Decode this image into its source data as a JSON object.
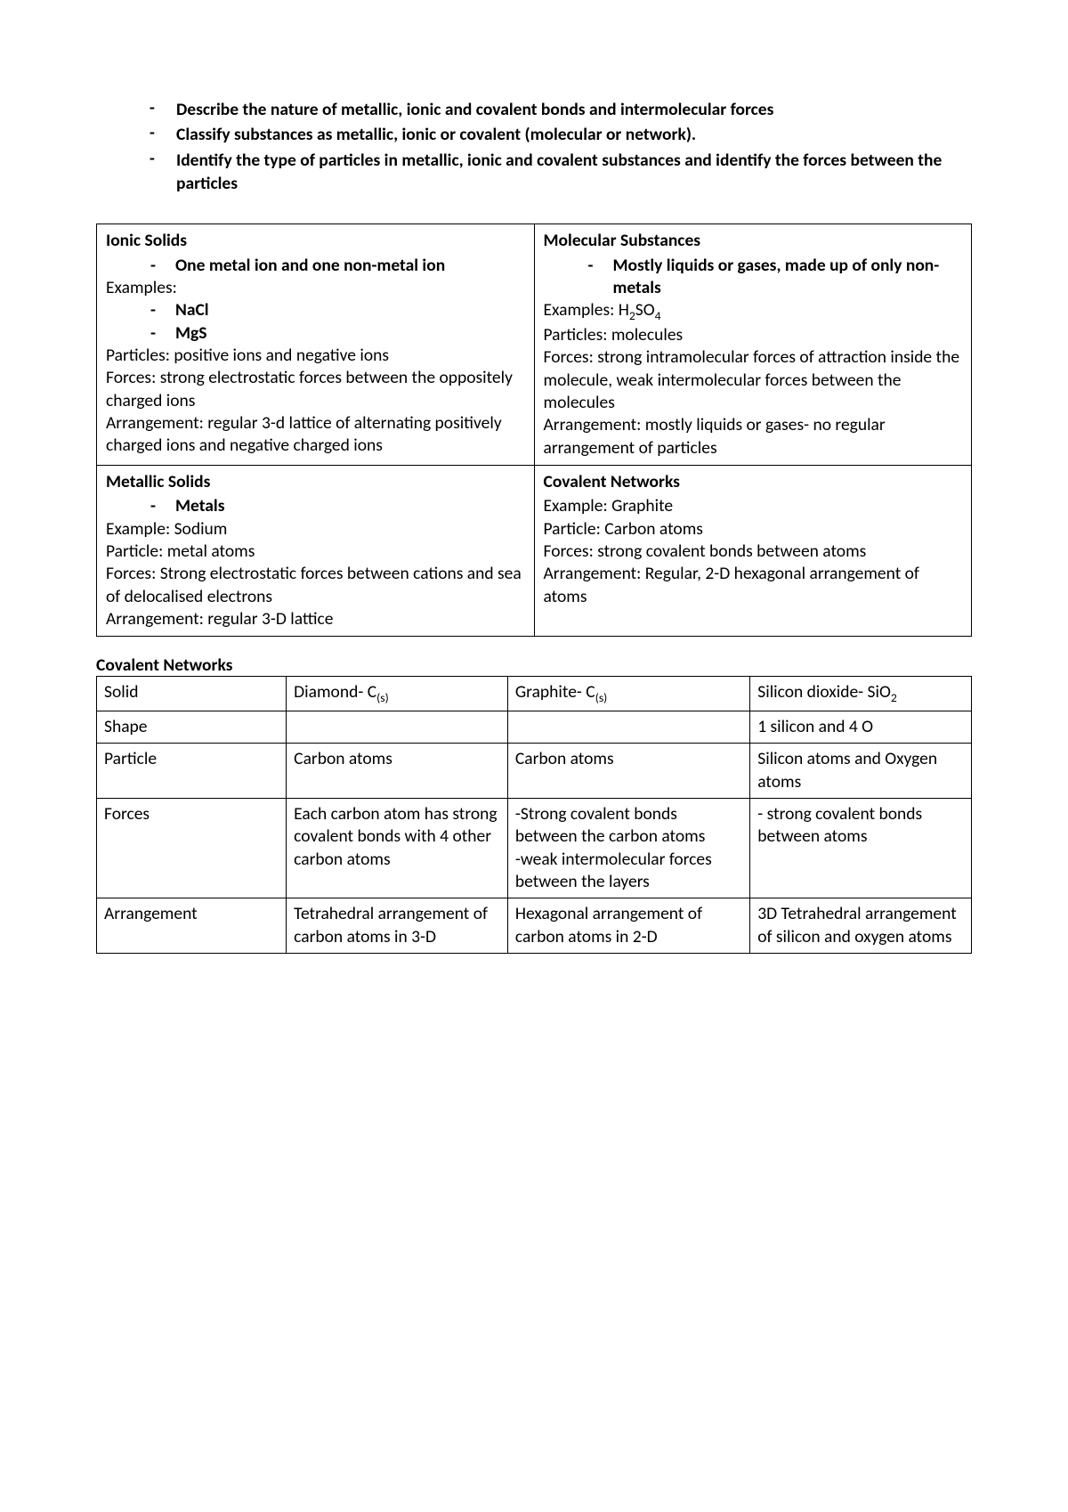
{
  "colors": {
    "text": "#000000",
    "background": "#ffffff",
    "border": "#000000"
  },
  "typography": {
    "font_family": "Calibri, Segoe UI, Arial, sans-serif",
    "body_fontsize_pt": 15,
    "bold_weight": 700
  },
  "top_bullets": [
    "Describe the nature of metallic, ionic and covalent bonds and intermolecular forces",
    "Classify substances as metallic, ionic or covalent (molecular or network).",
    "Identify the type of particles in metallic, ionic and covalent substances and identify the forces between the particles"
  ],
  "grid": {
    "ionic": {
      "title": "Ionic Solids",
      "sub_bullets": [
        "One metal ion and one non-metal ion"
      ],
      "examples_label": "Examples:",
      "examples": [
        "NaCl",
        "MgS"
      ],
      "particles": "Particles: positive ions and negative ions",
      "forces": "Forces:  strong electrostatic forces between the oppositely charged ions",
      "arrangement": "Arrangement: regular 3-d lattice of alternating positively charged ions and negative charged ions"
    },
    "molecular": {
      "title": "Molecular Substances",
      "sub_bullets": [
        "Mostly liquids or gases, made up of only non-metals"
      ],
      "examples_html": "Examples: H<sub>2</sub>SO<sub>4</sub>",
      "particles": "Particles: molecules",
      "forces": "Forces: strong intramolecular forces of attraction inside the molecule, weak intermolecular forces between the molecules",
      "arrangement": "Arrangement: mostly liquids or gases- no regular arrangement of particles"
    },
    "metallic": {
      "title": "Metallic Solids",
      "sub_bullets": [
        "Metals"
      ],
      "example": "Example: Sodium",
      "particle": "Particle: metal atoms",
      "forces": "Forces: Strong electrostatic forces between cations and sea of delocalised electrons",
      "arrangement": "Arrangement: regular 3-D lattice"
    },
    "covalent": {
      "title": "Covalent Networks",
      "example": "Example: Graphite",
      "particle": "Particle: Carbon atoms",
      "forces": "Forces: strong covalent bonds between atoms",
      "arrangement": "Arrangement: Regular, 2-D hexagonal arrangement of atoms"
    }
  },
  "section_heading": "Covalent Networks",
  "cov_table": {
    "columns": [
      "Solid",
      "Diamond- C_(s)",
      "Graphite- C_(s)",
      "Silicon dioxide- SiO2"
    ],
    "rows": [
      {
        "label": "Shape",
        "diamond": "",
        "graphite": "",
        "sio2": "1 silicon and 4 O"
      },
      {
        "label": "Particle",
        "diamond": "Carbon atoms",
        "graphite": "Carbon atoms",
        "sio2": "Silicon atoms and Oxygen atoms"
      },
      {
        "label": "Forces",
        "diamond": "Each carbon atom has strong covalent bonds with 4 other carbon atoms",
        "graphite": "-Strong covalent bonds between the carbon atoms\n-weak intermolecular forces between the layers",
        "sio2": "- strong covalent bonds between atoms"
      },
      {
        "label": "Arrangement",
        "diamond": "Tetrahedral arrangement of carbon atoms in 3-D",
        "graphite": "Hexagonal arrangement of carbon atoms in 2-D",
        "sio2": "3D Tetrahedral arrangement of silicon and oxygen atoms"
      }
    ]
  }
}
